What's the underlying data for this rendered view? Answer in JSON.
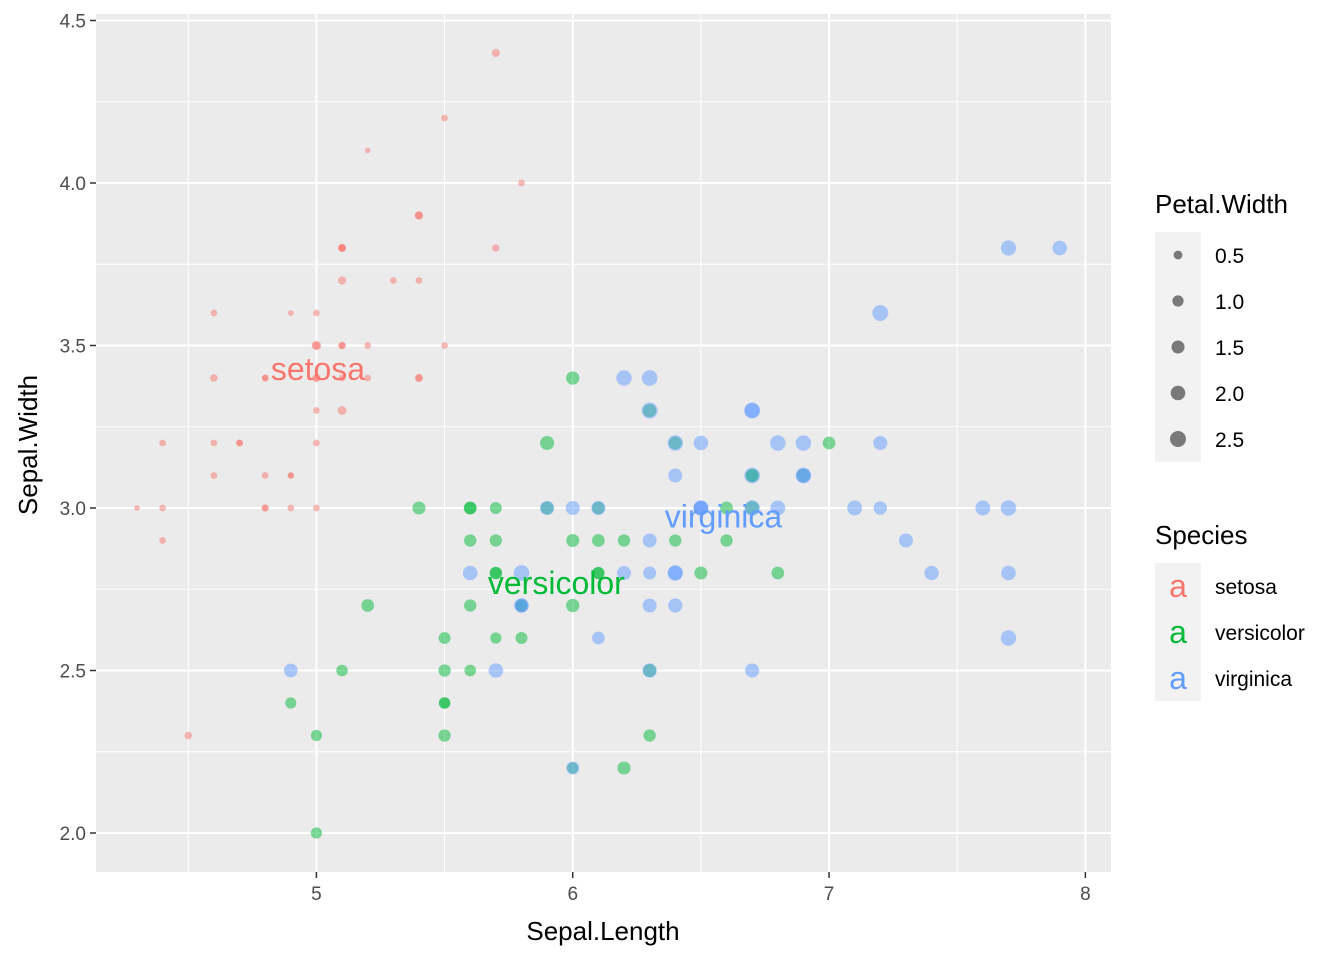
{
  "chart_data": {
    "type": "scatter",
    "xlabel": "Sepal.Length",
    "ylabel": "Sepal.Width",
    "xlim": [
      4.14,
      8.1
    ],
    "ylim": [
      1.88,
      4.52
    ],
    "x_ticks": [
      5,
      6,
      7,
      8
    ],
    "y_ticks": [
      2.0,
      2.5,
      3.0,
      3.5,
      4.0,
      4.5
    ],
    "x_tick_labels": [
      "5",
      "6",
      "7",
      "8"
    ],
    "y_tick_labels": [
      "2.0",
      "2.5",
      "3.0",
      "3.5",
      "4.0",
      "4.5"
    ],
    "grid": true,
    "background": "#ebebeb",
    "point_alpha": 0.5,
    "size_variable": "Petal.Width",
    "color_variable": "Species",
    "size_legend": {
      "title": "Petal.Width",
      "breaks": [
        0.5,
        1.0,
        1.5,
        2.0,
        2.5
      ],
      "labels": [
        "0.5",
        "1.0",
        "1.5",
        "2.0",
        "2.5"
      ],
      "placement": "right"
    },
    "color_legend": {
      "title": "Species",
      "glyph": "a",
      "entries": [
        {
          "label": "setosa",
          "color": "#F8766D"
        },
        {
          "label": "versicolor",
          "color": "#00BA38"
        },
        {
          "label": "virginica",
          "color": "#619CFF"
        }
      ],
      "placement": "right"
    },
    "series": [
      {
        "name": "setosa",
        "color": "#F8766D",
        "text_label": {
          "text": "setosa",
          "x": 5.006,
          "y": 3.428
        },
        "x": [
          5.1,
          4.9,
          4.7,
          4.6,
          5.0,
          5.4,
          4.6,
          5.0,
          4.4,
          4.9,
          5.4,
          4.8,
          4.8,
          4.3,
          5.8,
          5.7,
          5.4,
          5.1,
          5.7,
          5.1,
          5.4,
          5.1,
          4.6,
          5.1,
          4.8,
          5.0,
          5.0,
          5.2,
          5.2,
          4.7,
          4.8,
          5.4,
          5.2,
          5.5,
          4.9,
          5.0,
          5.5,
          4.9,
          4.4,
          5.1,
          5.0,
          4.5,
          4.4,
          5.0,
          5.1,
          4.8,
          5.1,
          4.6,
          5.3,
          5.0
        ],
        "y": [
          3.5,
          3.0,
          3.2,
          3.1,
          3.6,
          3.9,
          3.4,
          3.4,
          2.9,
          3.1,
          3.7,
          3.4,
          3.0,
          3.0,
          4.0,
          4.4,
          3.9,
          3.5,
          3.8,
          3.8,
          3.4,
          3.7,
          3.6,
          3.3,
          3.4,
          3.0,
          3.4,
          3.5,
          3.4,
          3.2,
          3.1,
          3.4,
          4.1,
          4.2,
          3.1,
          3.2,
          3.5,
          3.6,
          3.0,
          3.4,
          3.5,
          2.3,
          3.2,
          3.5,
          3.8,
          3.0,
          3.8,
          3.2,
          3.7,
          3.3
        ],
        "size": [
          0.2,
          0.2,
          0.2,
          0.2,
          0.2,
          0.4,
          0.3,
          0.2,
          0.2,
          0.1,
          0.2,
          0.2,
          0.1,
          0.1,
          0.2,
          0.4,
          0.4,
          0.3,
          0.3,
          0.3,
          0.2,
          0.4,
          0.2,
          0.5,
          0.2,
          0.2,
          0.4,
          0.2,
          0.2,
          0.2,
          0.2,
          0.4,
          0.1,
          0.2,
          0.2,
          0.2,
          0.2,
          0.1,
          0.2,
          0.2,
          0.3,
          0.3,
          0.2,
          0.6,
          0.4,
          0.3,
          0.2,
          0.2,
          0.2,
          0.2
        ]
      },
      {
        "name": "versicolor",
        "color": "#00BA38",
        "text_label": {
          "text": "versicolor",
          "x": 5.936,
          "y": 2.77
        },
        "x": [
          7.0,
          6.4,
          6.9,
          5.5,
          6.5,
          5.7,
          6.3,
          4.9,
          6.6,
          5.2,
          5.0,
          5.9,
          6.0,
          6.1,
          5.6,
          6.7,
          5.6,
          5.8,
          6.2,
          5.6,
          5.9,
          6.1,
          6.3,
          6.1,
          6.4,
          6.6,
          6.8,
          6.7,
          6.0,
          5.7,
          5.5,
          5.5,
          5.8,
          6.0,
          5.4,
          6.0,
          6.7,
          6.3,
          5.6,
          5.5,
          5.5,
          6.1,
          5.8,
          5.0,
          5.6,
          5.7,
          5.7,
          6.2,
          5.1,
          5.7
        ],
        "y": [
          3.2,
          3.2,
          3.1,
          2.3,
          2.8,
          2.8,
          3.3,
          2.4,
          2.9,
          2.7,
          2.0,
          3.0,
          2.2,
          2.9,
          2.9,
          3.1,
          3.0,
          2.7,
          2.2,
          2.5,
          3.2,
          2.8,
          2.5,
          2.8,
          2.9,
          3.0,
          2.8,
          3.0,
          2.9,
          2.6,
          2.4,
          2.4,
          2.7,
          2.7,
          3.0,
          3.4,
          3.1,
          2.3,
          3.0,
          2.5,
          2.6,
          3.0,
          2.6,
          2.3,
          2.7,
          3.0,
          2.9,
          2.9,
          2.5,
          2.8
        ],
        "size": [
          1.4,
          1.5,
          1.5,
          1.3,
          1.5,
          1.3,
          1.6,
          1.0,
          1.3,
          1.4,
          1.0,
          1.5,
          1.0,
          1.4,
          1.3,
          1.4,
          1.5,
          1.0,
          1.5,
          1.1,
          1.8,
          1.3,
          1.5,
          1.2,
          1.3,
          1.4,
          1.4,
          1.7,
          1.5,
          1.0,
          1.1,
          1.0,
          1.2,
          1.6,
          1.5,
          1.6,
          1.5,
          1.3,
          1.3,
          1.3,
          1.2,
          1.4,
          1.2,
          1.0,
          1.3,
          1.2,
          1.3,
          1.3,
          1.1,
          1.3
        ]
      },
      {
        "name": "virginica",
        "color": "#619CFF",
        "text_label": {
          "text": "virginica",
          "x": 6.588,
          "y": 2.974
        },
        "x": [
          6.3,
          5.8,
          7.1,
          6.3,
          6.5,
          7.6,
          4.9,
          7.3,
          6.7,
          7.2,
          6.5,
          6.4,
          6.8,
          5.7,
          5.8,
          6.4,
          6.5,
          7.7,
          7.7,
          6.0,
          6.9,
          5.6,
          7.7,
          6.3,
          6.7,
          7.2,
          6.2,
          6.1,
          6.4,
          7.2,
          7.4,
          7.9,
          6.4,
          6.3,
          6.1,
          7.7,
          6.3,
          6.4,
          6.0,
          6.9,
          6.7,
          6.9,
          5.8,
          6.8,
          6.7,
          6.7,
          6.3,
          6.5,
          6.2,
          5.9
        ],
        "y": [
          3.3,
          2.7,
          3.0,
          2.9,
          3.0,
          3.0,
          2.5,
          2.9,
          2.5,
          3.6,
          3.2,
          2.7,
          3.0,
          2.5,
          2.8,
          3.2,
          3.0,
          3.8,
          2.6,
          2.2,
          3.2,
          2.8,
          2.8,
          2.7,
          3.3,
          3.2,
          2.8,
          3.0,
          2.8,
          3.0,
          2.8,
          3.8,
          2.8,
          2.8,
          2.6,
          3.0,
          3.4,
          3.1,
          3.0,
          3.1,
          3.1,
          3.1,
          2.7,
          3.2,
          3.3,
          3.0,
          2.5,
          3.0,
          3.4,
          3.0
        ],
        "size": [
          2.5,
          1.9,
          2.1,
          1.8,
          2.2,
          2.1,
          1.7,
          1.8,
          1.8,
          2.5,
          2.0,
          1.9,
          2.1,
          2.0,
          2.4,
          2.3,
          1.8,
          2.2,
          2.3,
          1.5,
          2.3,
          2.0,
          2.0,
          1.8,
          2.1,
          1.8,
          1.8,
          1.8,
          2.1,
          1.6,
          1.9,
          2.0,
          2.2,
          1.5,
          1.4,
          2.3,
          2.4,
          1.8,
          1.8,
          2.1,
          2.4,
          2.3,
          1.9,
          2.3,
          2.5,
          2.3,
          1.9,
          2.0,
          2.3,
          1.8
        ]
      }
    ]
  }
}
